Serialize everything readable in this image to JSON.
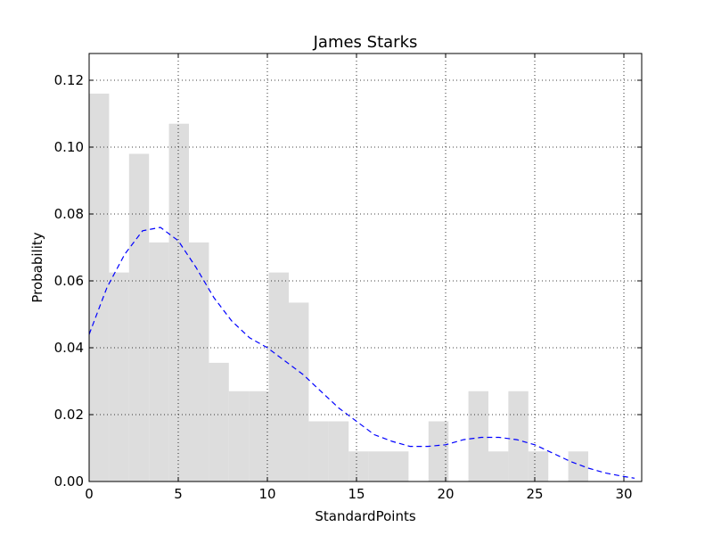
{
  "chart_data": {
    "type": "bar",
    "title": "James Starks",
    "xlabel": "StandardPoints",
    "ylabel": "Probability",
    "xlim": [
      0,
      31
    ],
    "ylim": [
      0,
      0.128
    ],
    "grid": true,
    "xticks": [
      0,
      5,
      10,
      15,
      20,
      25,
      30
    ],
    "yticks": [
      0.0,
      0.02,
      0.04,
      0.06,
      0.08,
      0.1,
      0.12
    ],
    "ytick_labels": [
      "0.00",
      "0.02",
      "0.04",
      "0.06",
      "0.08",
      "0.10",
      "0.12"
    ],
    "histogram": {
      "color": "#dddddd",
      "bin_edges": [
        0,
        1.12,
        2.24,
        3.36,
        4.48,
        5.6,
        6.72,
        7.84,
        8.96,
        10.08,
        11.2,
        12.32,
        13.44,
        14.56,
        15.68,
        16.8,
        17.92,
        19.04,
        20.16,
        21.28,
        22.4,
        23.52,
        24.64,
        25.76,
        26.88,
        28.0
      ],
      "values": [
        0.116,
        0.0625,
        0.098,
        0.0715,
        0.107,
        0.0715,
        0.0355,
        0.027,
        0.027,
        0.0625,
        0.0535,
        0.018,
        0.018,
        0.009,
        0.009,
        0.009,
        0.0,
        0.018,
        0.0,
        0.027,
        0.009,
        0.027,
        0.009,
        0.0,
        0.009
      ]
    },
    "density": {
      "color": "#0000ff",
      "style": "dashed",
      "x": [
        0,
        1,
        2,
        3,
        4,
        5,
        6,
        7,
        8,
        9,
        10,
        11,
        12,
        13,
        14,
        15,
        16,
        17,
        18,
        19,
        20,
        21,
        22,
        23,
        24,
        25,
        26,
        27,
        28,
        29,
        30,
        30.6
      ],
      "y": [
        0.044,
        0.058,
        0.068,
        0.075,
        0.076,
        0.072,
        0.064,
        0.055,
        0.048,
        0.043,
        0.04,
        0.036,
        0.032,
        0.027,
        0.022,
        0.018,
        0.014,
        0.012,
        0.0105,
        0.0105,
        0.011,
        0.0125,
        0.0132,
        0.0132,
        0.0125,
        0.011,
        0.0085,
        0.006,
        0.004,
        0.0025,
        0.0015,
        0.001
      ]
    }
  }
}
